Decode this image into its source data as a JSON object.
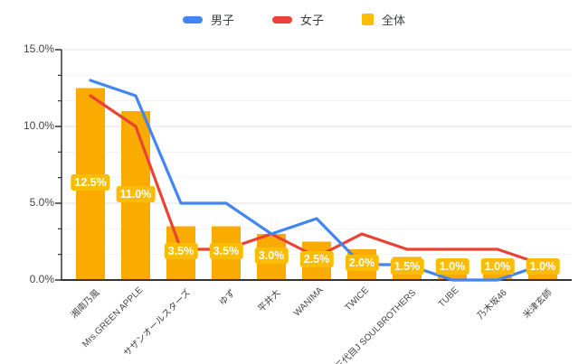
{
  "legend": {
    "items": [
      {
        "label": "男子",
        "marker": "line"
      },
      {
        "label": "女子",
        "marker": "line"
      },
      {
        "label": "全体",
        "marker": "square"
      }
    ]
  },
  "chart_data": {
    "type": "combo (line + bar)",
    "categories": [
      "湘南乃風",
      "Mrs.GREEN APPLE",
      "サザンオールスターズ",
      "ゆず",
      "平井大",
      "WANIMA",
      "TWICE",
      "三代目J SOULBROTHERS",
      "TUBE",
      "乃木坂46",
      "米津玄師"
    ],
    "series": [
      {
        "name": "男子",
        "type": "line",
        "color": "#4285F4",
        "values": [
          13.0,
          12.0,
          5.0,
          5.0,
          3.0,
          4.0,
          1.0,
          1.0,
          0.0,
          0.0,
          1.0
        ]
      },
      {
        "name": "女子",
        "type": "line",
        "color": "#EA4335",
        "values": [
          12.0,
          10.0,
          2.0,
          2.0,
          3.0,
          1.5,
          3.0,
          2.0,
          2.0,
          2.0,
          1.0
        ]
      },
      {
        "name": "全体",
        "type": "bar",
        "color": "#F9AB00",
        "annotation_color": "#FBBC04",
        "values": [
          12.5,
          11.0,
          3.5,
          3.5,
          3.0,
          2.5,
          2.0,
          1.5,
          1.0,
          1.0,
          1.0
        ]
      }
    ],
    "bar_labels": [
      "12.5%",
      "11.0%",
      "3.5%",
      "3.5%",
      "3.0%",
      "2.5%",
      "2.0%",
      "1.5%",
      "1.0%",
      "1.0%",
      "1.0%"
    ],
    "y_axis": {
      "ticks": [
        {
          "label": "0.0%",
          "value": 0
        },
        {
          "label": "5.0%",
          "value": 5
        },
        {
          "label": "10.0%",
          "value": 10
        },
        {
          "label": "15.0%",
          "value": 15
        }
      ],
      "minor_tick_values": [
        1.667,
        3.333,
        6.667,
        8.333,
        11.667,
        13.333
      ],
      "min": 0,
      "max": 15
    },
    "layout_hints": {
      "legend_position": "top",
      "grid": "horizontal major + faint minor",
      "x_label_rotation_deg": -45
    },
    "colors": {
      "axis": "#333333",
      "major_gridline": "#e2e2e2",
      "minor_gridline": "#f2f2f2",
      "axis_text": "#444444",
      "annotation_text": "#ffffff"
    }
  }
}
